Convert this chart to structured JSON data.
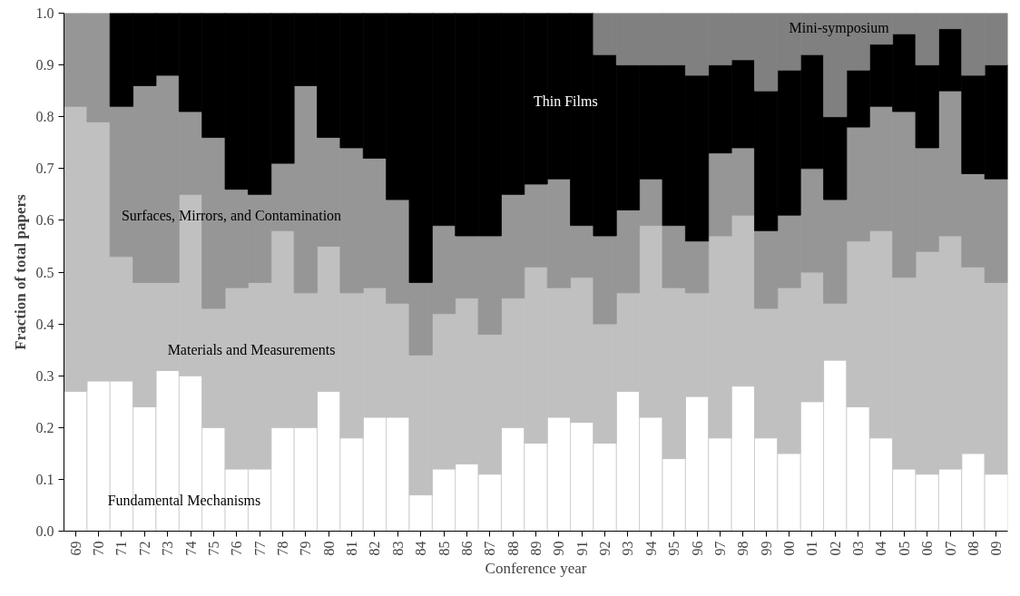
{
  "chart_data": {
    "type": "bar",
    "stacked": true,
    "xlabel": "Conference year",
    "ylabel": "Fraction of total papers",
    "categories": [
      "69",
      "70",
      "71",
      "72",
      "73",
      "74",
      "75",
      "76",
      "77",
      "78",
      "79",
      "80",
      "81",
      "82",
      "83",
      "84",
      "85",
      "86",
      "87",
      "88",
      "89",
      "90",
      "91",
      "92",
      "93",
      "94",
      "95",
      "96",
      "97",
      "98",
      "99",
      "00",
      "01",
      "02",
      "03",
      "04",
      "05",
      "06",
      "07",
      "08",
      "09"
    ],
    "series": [
      {
        "name": "Fundamental Mechanisms",
        "color": "#ffffff",
        "values": [
          0.27,
          0.29,
          0.29,
          0.24,
          0.31,
          0.3,
          0.2,
          0.12,
          0.12,
          0.2,
          0.2,
          0.27,
          0.18,
          0.22,
          0.22,
          0.07,
          0.12,
          0.13,
          0.11,
          0.2,
          0.17,
          0.22,
          0.21,
          0.17,
          0.27,
          0.22,
          0.14,
          0.26,
          0.18,
          0.28,
          0.18,
          0.15,
          0.25,
          0.33,
          0.24,
          0.18,
          0.12,
          0.11,
          0.12,
          0.15,
          0.11
        ]
      },
      {
        "name": "Materials and Measurements",
        "color": "#c0c0c0",
        "values": [
          0.55,
          0.5,
          0.24,
          0.24,
          0.17,
          0.35,
          0.23,
          0.35,
          0.36,
          0.38,
          0.26,
          0.28,
          0.28,
          0.25,
          0.22,
          0.27,
          0.3,
          0.32,
          0.27,
          0.25,
          0.34,
          0.25,
          0.28,
          0.23,
          0.19,
          0.37,
          0.33,
          0.2,
          0.39,
          0.33,
          0.25,
          0.32,
          0.25,
          0.11,
          0.32,
          0.4,
          0.37,
          0.43,
          0.45,
          0.36,
          0.37
        ]
      },
      {
        "name": "Surfaces, Mirrors, and Contamination",
        "color": "#969696",
        "values": [
          0.18,
          0.21,
          0.29,
          0.38,
          0.4,
          0.16,
          0.33,
          0.19,
          0.17,
          0.13,
          0.4,
          0.21,
          0.28,
          0.25,
          0.2,
          0.14,
          0.17,
          0.12,
          0.19,
          0.2,
          0.16,
          0.21,
          0.1,
          0.17,
          0.16,
          0.09,
          0.12,
          0.1,
          0.16,
          0.13,
          0.15,
          0.14,
          0.2,
          0.2,
          0.22,
          0.24,
          0.32,
          0.2,
          0.28,
          0.18,
          0.2
        ]
      },
      {
        "name": "Thin Films",
        "color": "#000000",
        "values": [
          0,
          0,
          0.18,
          0.14,
          0.12,
          0.19,
          0.24,
          0.34,
          0.35,
          0.29,
          0.14,
          0.24,
          0.26,
          0.28,
          0.36,
          0.52,
          0.41,
          0.43,
          0.43,
          0.35,
          0.33,
          0.32,
          0.41,
          0.35,
          0.28,
          0.22,
          0.31,
          0.32,
          0.17,
          0.17,
          0.27,
          0.28,
          0.22,
          0.16,
          0.11,
          0.12,
          0.15,
          0.16,
          0.12,
          0.19,
          0.22
        ]
      },
      {
        "name": "Mini-symposium",
        "color": "#808080",
        "values": [
          0,
          0,
          0,
          0,
          0,
          0,
          0,
          0,
          0,
          0,
          0,
          0,
          0,
          0,
          0,
          0,
          0,
          0,
          0,
          0,
          0,
          0,
          0,
          0.08,
          0.1,
          0.1,
          0.1,
          0.12,
          0.1,
          0.09,
          0.15,
          0.11,
          0.08,
          0.2,
          0.11,
          0.06,
          0.04,
          0.1,
          0.03,
          0.12,
          0.1
        ]
      }
    ],
    "ylim": [
      0,
      1
    ],
    "yticks": [
      {
        "value": 0,
        "label": "0.0"
      },
      {
        "value": 0.1,
        "label": "0.1"
      },
      {
        "value": 0.2,
        "label": "0.2"
      },
      {
        "value": 0.3,
        "label": "0.3"
      },
      {
        "value": 0.4,
        "label": "0.4"
      },
      {
        "value": 0.5,
        "label": "0.5"
      },
      {
        "value": 0.6,
        "label": "0.6"
      },
      {
        "value": 0.7,
        "label": "0.7"
      },
      {
        "value": 0.8,
        "label": "0.8"
      },
      {
        "value": 0.9,
        "label": "0.9"
      },
      {
        "value": 1,
        "label": "1.0"
      }
    ],
    "legend": false
  }
}
